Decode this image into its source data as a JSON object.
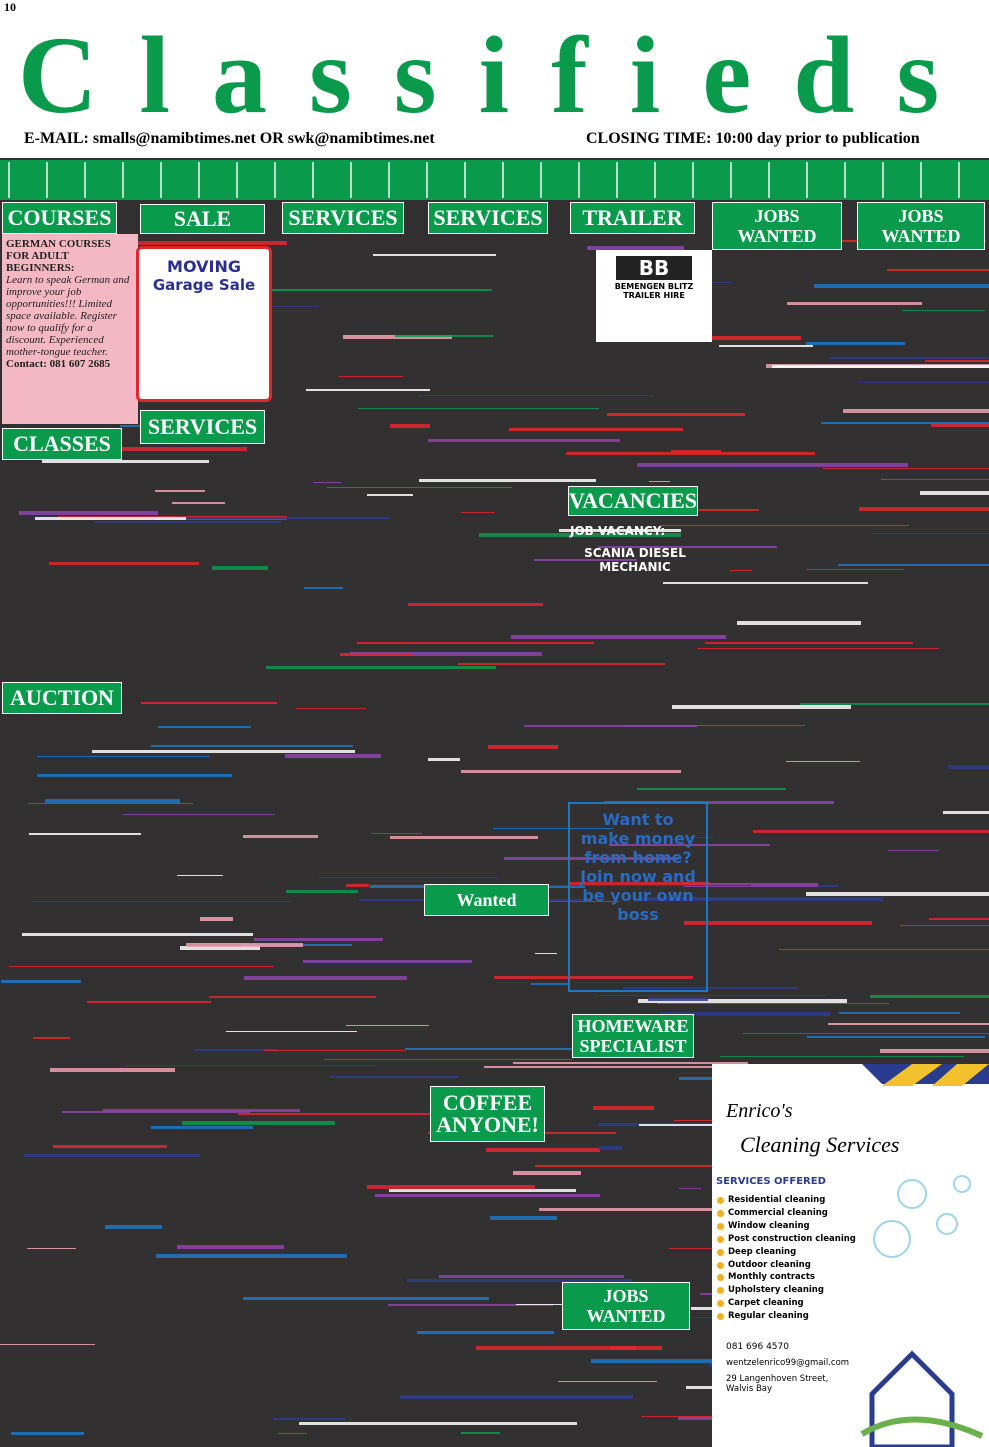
{
  "header": {
    "page_number": "10",
    "title": "Classifieds",
    "email": "E-MAIL: smalls@namibtimes.net OR swk@namibtimes.net",
    "closing": "CLOSING TIME: 10:00 day prior to publication"
  },
  "sections": [
    "COURSES",
    "SALE",
    "SERVICES",
    "SERVICES",
    "TRAILER",
    "JOBS WANTED",
    "JOBS WANTED",
    "SERVICES",
    "CLASSES",
    "VACANCIES",
    "AUCTION",
    "Wanted",
    "HOMEWARE SPECIALIST",
    "COFFEE ANYONE!",
    "JOBS WANTED"
  ],
  "german_course": {
    "title": "GERMAN COURSES FOR ADULT BEGINNERS:",
    "body": "Learn to speak German and improve your job opportunities!!! Limited space available. Register now to qualify for a discount. Experienced mother-tongue teacher.",
    "contact": "Contact: 081 607 2685"
  },
  "garage_sale": {
    "headline": "MOVING",
    "title": "Garage Sale"
  },
  "trailer": {
    "logo": "BB",
    "name": "BEMENGEN BLITZ TRAILER HIRE"
  },
  "vacancy": {
    "label": "JOB VACANCY:",
    "position": "SCANIA DIESEL MECHANIC"
  },
  "wanted_box": {
    "text": "Want to make money from home? Join now and be your own boss"
  },
  "cleaning_ad": {
    "name": "Enrico's",
    "title": "Cleaning Services",
    "services_heading": "SERVICES OFFERED",
    "services": [
      "Residential cleaning",
      "Commercial cleaning",
      "Window cleaning",
      "Post construction cleaning",
      "Deep cleaning",
      "Outdoor cleaning",
      "Monthly contracts",
      "Upholstery cleaning",
      "Carpet cleaning",
      "Regular cleaning"
    ],
    "phone": "081 696 4570",
    "email": "wentzelenrico99@gmail.com",
    "address": "29 Langenhoven Street, Walvis Bay"
  }
}
